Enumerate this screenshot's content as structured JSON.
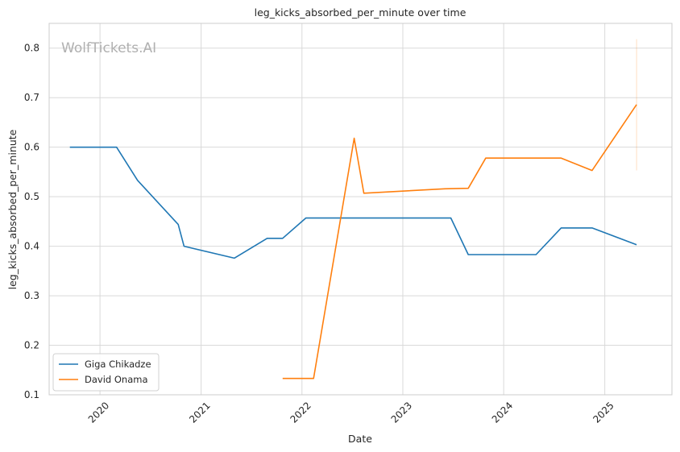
{
  "chart_data": {
    "type": "line",
    "title": "leg_kicks_absorbed_per_minute over time",
    "xlabel": "Date",
    "ylabel": "leg_kicks_absorbed_per_minute",
    "watermark": "WolfTickets.AI",
    "xlim": [
      "2019-07-01",
      "2025-09-01"
    ],
    "ylim": [
      0.1,
      0.85
    ],
    "x_ticks": [
      "2020",
      "2021",
      "2022",
      "2023",
      "2024",
      "2025"
    ],
    "y_ticks": [
      "0.1",
      "0.2",
      "0.3",
      "0.4",
      "0.5",
      "0.6",
      "0.7",
      "0.8"
    ],
    "grid": true,
    "legend_position": "lower-left",
    "series": [
      {
        "name": "Giga Chikadze",
        "color": "#1f77b4",
        "points": [
          [
            "2019-09-14",
            0.6
          ],
          [
            "2020-03-01",
            0.6
          ],
          [
            "2020-05-16",
            0.533
          ],
          [
            "2020-10-10",
            0.444
          ],
          [
            "2020-10-31",
            0.4
          ],
          [
            "2021-05-01",
            0.376
          ],
          [
            "2021-08-28",
            0.416
          ],
          [
            "2021-10-23",
            0.416
          ],
          [
            "2022-01-15",
            0.457
          ],
          [
            "2023-06-24",
            0.457
          ],
          [
            "2023-08-26",
            0.383
          ],
          [
            "2024-04-27",
            0.383
          ],
          [
            "2024-07-27",
            0.437
          ],
          [
            "2024-11-16",
            0.437
          ],
          [
            "2025-04-26",
            0.403
          ]
        ]
      },
      {
        "name": "David Onama",
        "color": "#ff7f0e",
        "points": [
          [
            "2021-10-23",
            0.133
          ],
          [
            "2022-02-12",
            0.133
          ],
          [
            "2022-07-09",
            0.618
          ],
          [
            "2022-08-13",
            0.507
          ],
          [
            "2023-06-03",
            0.516
          ],
          [
            "2023-08-26",
            0.517
          ],
          [
            "2023-10-28",
            0.578
          ],
          [
            "2024-07-27",
            0.578
          ],
          [
            "2024-11-16",
            0.553
          ],
          [
            "2025-04-26",
            0.686
          ]
        ],
        "error_band": {
          "x": "2025-04-26",
          "low": 0.553,
          "high": 0.818
        }
      }
    ]
  }
}
